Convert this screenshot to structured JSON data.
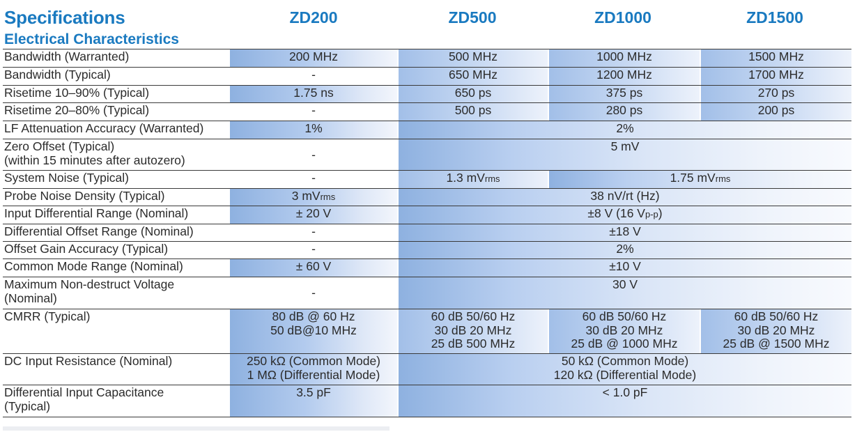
{
  "header": {
    "title": "Specifications",
    "subtitle": "Electrical Characteristics",
    "models": [
      "ZD200",
      "ZD500",
      "ZD1000",
      "ZD1500"
    ]
  },
  "rows": {
    "bw_warranted": {
      "label": "Bandwidth (Warranted)",
      "zd200": "200 MHz",
      "zd500": "500 MHz",
      "zd1000": "1000 MHz",
      "zd1500": "1500 MHz"
    },
    "bw_typical": {
      "label": "Bandwidth (Typical)",
      "zd200": "-",
      "zd500": "650 MHz",
      "zd1000": "1200 MHz",
      "zd1500": "1700 MHz"
    },
    "rise_1090": {
      "label": "Risetime 10–90% (Typical)",
      "zd200": "1.75 ns",
      "zd500": "650 ps",
      "zd1000": "375 ps",
      "zd1500": "270 ps"
    },
    "rise_2080": {
      "label": "Risetime 20–80% (Typical)",
      "zd200": "-",
      "zd500": "500 ps",
      "zd1000": "280 ps",
      "zd1500": "200 ps"
    },
    "lf_atten": {
      "label": "LF Attenuation Accuracy (Warranted)",
      "zd200": "1%",
      "others": "2%"
    },
    "zero_offset": {
      "label_line1": "Zero Offset (Typical)",
      "label_line2": "(within 15 minutes after autozero)",
      "zd200": "-",
      "others": "5 mV"
    },
    "system_noise": {
      "label": "System Noise (Typical)",
      "zd200": "-",
      "zd500_main": "1.3 mV",
      "zd500_sub": "rms",
      "zd1000_1500_main": "1.75 mV",
      "zd1000_1500_sub": "rms"
    },
    "noise_density": {
      "label": "Probe Noise Density (Typical)",
      "zd200_main": "3 mV",
      "zd200_sub": "rms",
      "others": "38 nV/rt (Hz)"
    },
    "diff_range": {
      "label": "Input Differential Range (Nominal)",
      "zd200": "± 20 V",
      "others_main": "±8 V (16 V",
      "others_sub": "p-p",
      "others_end": ")"
    },
    "diff_offset": {
      "label": "Differential Offset Range (Nominal)",
      "zd200": "-",
      "others": "±18 V"
    },
    "offset_gain": {
      "label": "Offset Gain Accuracy (Typical)",
      "zd200": "-",
      "others": "2%"
    },
    "cm_range": {
      "label": "Common Mode Range (Nominal)",
      "zd200": "± 60 V",
      "others": "±10 V"
    },
    "nondestruct": {
      "label_line1": "Maximum Non-destruct Voltage",
      "label_line2": "(Nominal)",
      "zd200": "-",
      "others": "30 V"
    },
    "cmrr": {
      "label": "CMRR (Typical)",
      "zd200": [
        "80 dB @ 60 Hz",
        "50 dB@10 MHz"
      ],
      "zd500": [
        "60 dB  50/60 Hz",
        "30 dB  20 MHz",
        "25 dB 500 MHz"
      ],
      "zd1000": [
        "60 dB  50/60 Hz",
        "30 dB  20 MHz",
        "25 dB @ 1000 MHz"
      ],
      "zd1500": [
        "60 dB  50/60 Hz",
        "30 dB  20 MHz",
        "25 dB @ 1500 MHz"
      ]
    },
    "dc_res": {
      "label": "DC Input Resistance (Nominal)",
      "zd200": [
        "250 kΩ (Common Mode)",
        "1 MΩ (Differential Mode)"
      ],
      "others": [
        "50 kΩ (Common Mode)",
        "120 kΩ (Differential Mode)"
      ]
    },
    "diff_cap": {
      "label_line1": "Differential Input Capacitance",
      "label_line2": "(Typical)",
      "zd200": "3.5 pF",
      "others": "< 1.0 pF"
    }
  }
}
